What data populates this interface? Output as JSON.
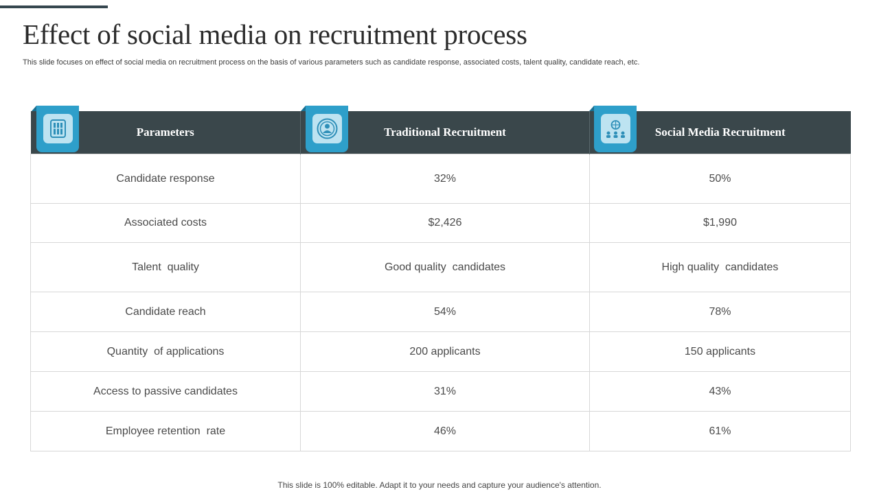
{
  "slide": {
    "title": "Effect of social media on recruitment process",
    "subtitle": "This slide focuses on effect of social media on recruitment process on the basis of various parameters such as candidate response, associated costs, talent quality, candidate reach, etc.",
    "footer": "This slide is 100% editable. Adapt it to your needs and capture your audience's attention."
  },
  "table": {
    "headers": [
      {
        "label": "Parameters",
        "icon": "checklist-icon"
      },
      {
        "label": "Traditional Recruitment",
        "icon": "person-target-icon"
      },
      {
        "label": "Social Media Recruitment",
        "icon": "network-people-icon"
      }
    ],
    "rows": [
      [
        "Candidate response",
        "32%",
        "50%"
      ],
      [
        "Associated costs",
        "$2,426",
        "$1,990"
      ],
      [
        "Talent  quality",
        "Good quality  candidates",
        "High quality  candidates"
      ],
      [
        "Candidate reach",
        "54%",
        "78%"
      ],
      [
        "Quantity  of applications",
        "200 applicants",
        "150 applicants"
      ],
      [
        "Access to passive candidates",
        "31%",
        "43%"
      ],
      [
        "Employee retention  rate",
        "46%",
        "61%"
      ]
    ]
  },
  "colors": {
    "header_bg": "#3a474b",
    "accent": "#2e9fca",
    "accent_light": "#bde3f1"
  }
}
